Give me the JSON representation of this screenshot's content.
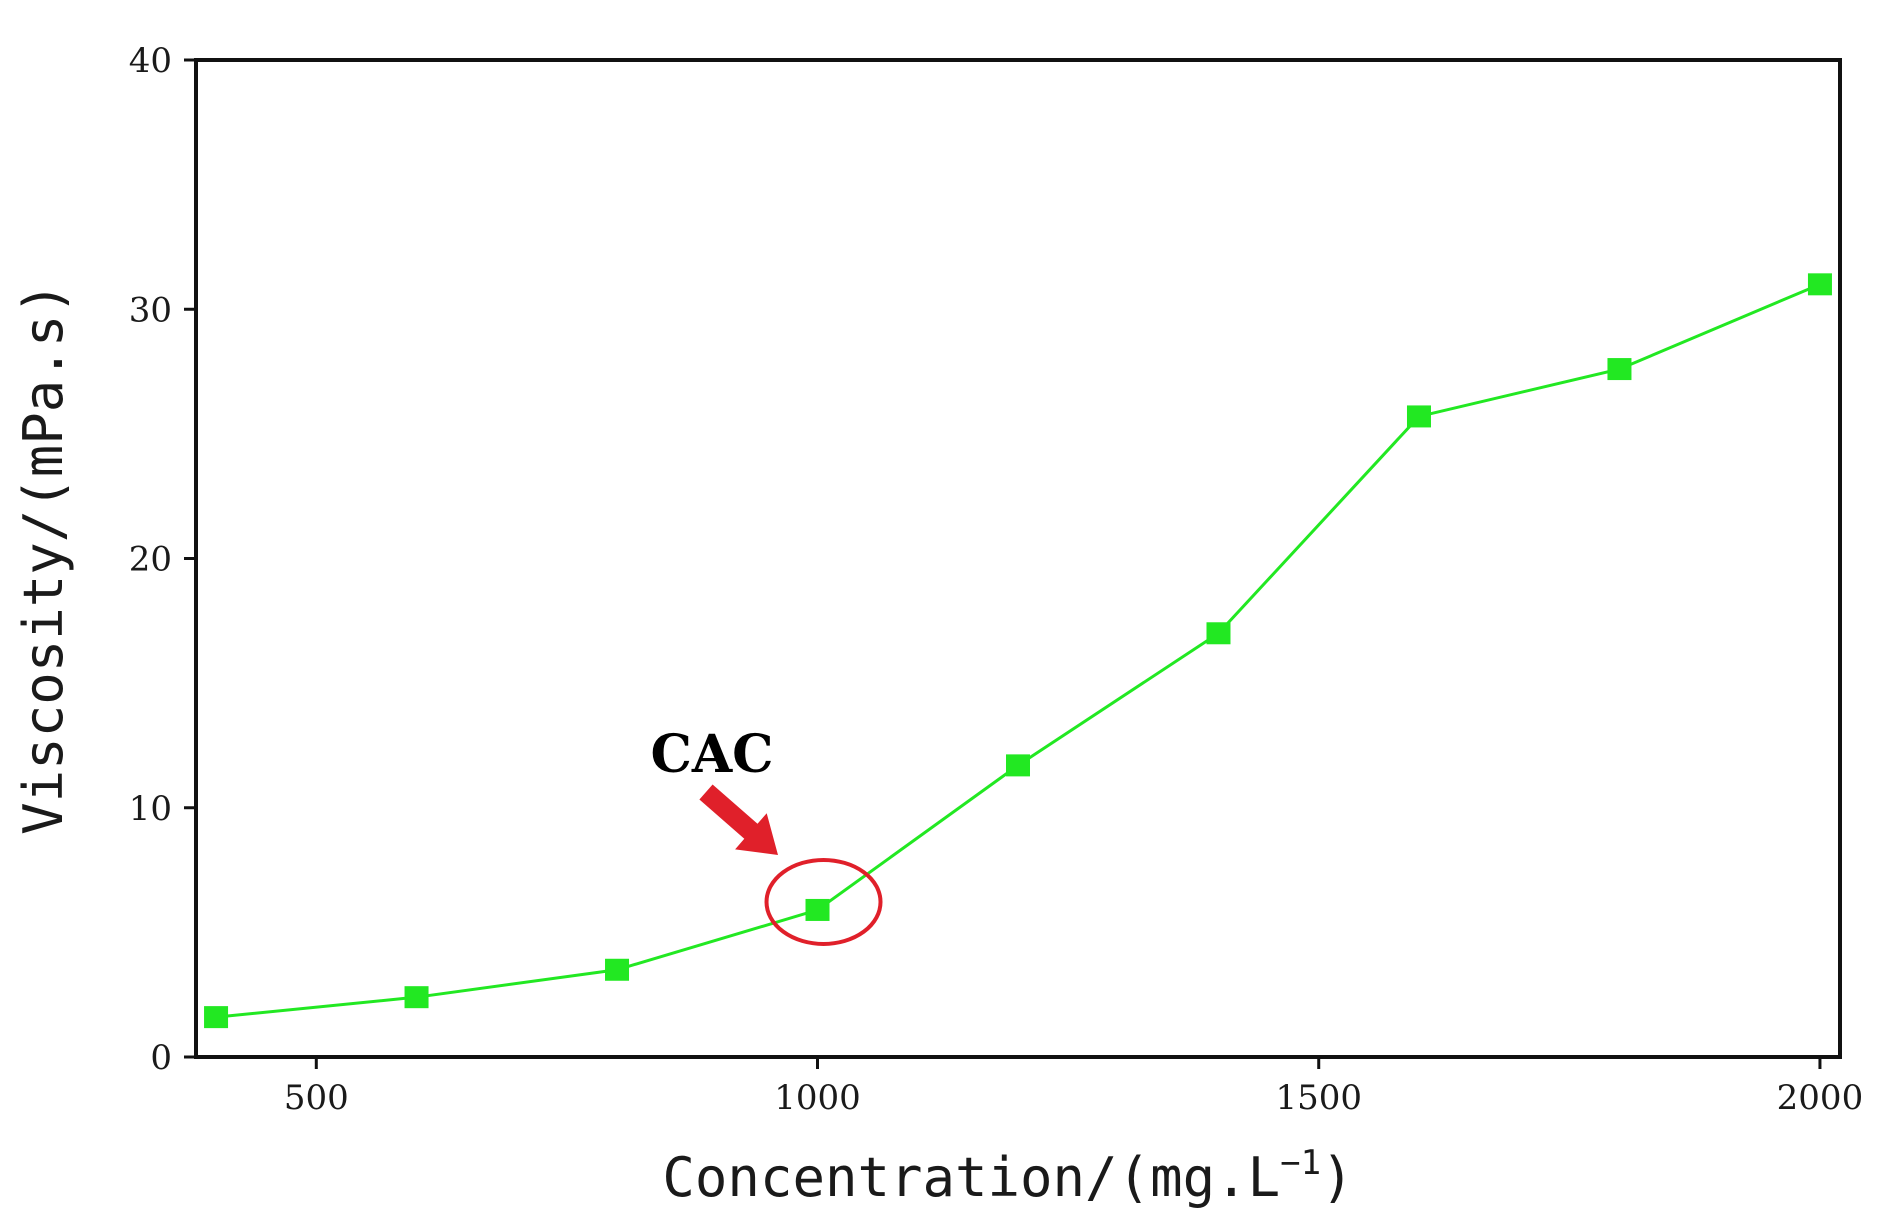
{
  "chart_data": {
    "type": "line",
    "title": "",
    "xlabel": "Concentration/(mg.L",
    "xlabel_superscript": "−1",
    "xlabel_close": ")",
    "ylabel": "Viscosity/(mPa.s)",
    "xlim": [
      380,
      2020
    ],
    "ylim": [
      0,
      40
    ],
    "xticks": [
      500,
      1000,
      1500,
      2000
    ],
    "xtick_labels": [
      "500",
      "1000",
      "1500",
      "2000"
    ],
    "yticks": [
      0,
      10,
      20,
      30,
      40
    ],
    "ytick_labels": [
      "0",
      "10",
      "20",
      "30",
      "40"
    ],
    "grid": false,
    "series": [
      {
        "color": "#22e822",
        "marker": "square",
        "x": [
          400,
          600,
          800,
          1000,
          1200,
          1400,
          1600,
          1800,
          2000
        ],
        "y": [
          1.6,
          2.4,
          3.5,
          5.9,
          11.7,
          17.0,
          25.7,
          27.6,
          31.0
        ]
      }
    ],
    "annotations": [
      {
        "text": "CAC",
        "target_x": 1000,
        "target_y": 5.9,
        "highlight": "circle",
        "color": "#e0202a"
      }
    ]
  }
}
